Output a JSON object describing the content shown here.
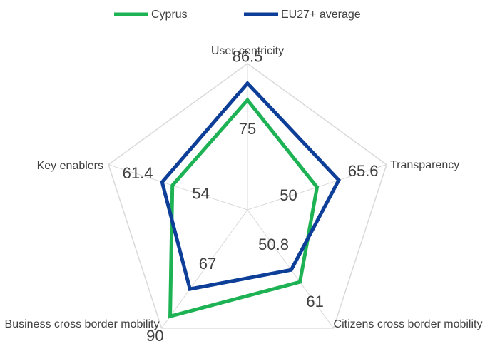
{
  "chart_data": {
    "type": "radar",
    "categories": [
      "User-centricity",
      "Transparency",
      "Citizens cross border mobility",
      "Business cross border mobility",
      "Key enablers"
    ],
    "series": [
      {
        "name": "Cyprus",
        "color": "#1db254",
        "values": [
          75,
          50,
          61,
          90,
          54
        ]
      },
      {
        "name": "EU27+ average",
        "color": "#0e3f98",
        "values": [
          86.5,
          65.6,
          50.8,
          67,
          61.4
        ]
      }
    ],
    "ylim": [
      0,
      100
    ],
    "legend": "top"
  }
}
